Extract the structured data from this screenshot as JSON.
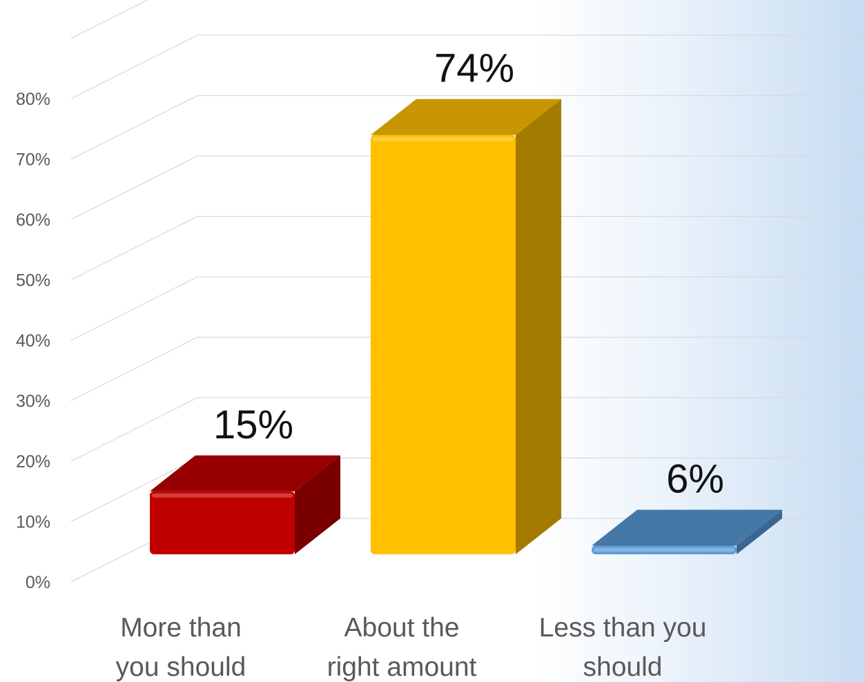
{
  "chart_data": {
    "type": "bar",
    "title": "",
    "xlabel": "",
    "ylabel": "",
    "categories": [
      "More than you should",
      "About the right amount",
      "Less than you should"
    ],
    "category_lines": [
      [
        "More than",
        "you should"
      ],
      [
        "About the",
        "right amount"
      ],
      [
        "Less than you",
        "should"
      ]
    ],
    "values": [
      15,
      74,
      6
    ],
    "value_labels": [
      "15%",
      "74%",
      "6%"
    ],
    "ylim": [
      0,
      80
    ],
    "yticks": [
      "0%",
      "10%",
      "20%",
      "30%",
      "40%",
      "50%",
      "60%",
      "70%",
      "80%"
    ],
    "grid": true,
    "legend": "none",
    "colors": [
      {
        "front": "#c00000",
        "top": "#960000",
        "side": "#7a0000"
      },
      {
        "front": "#ffc000",
        "top": "#c79600",
        "side": "#a37b00"
      },
      {
        "front": "#5b9bd5",
        "top": "#4478a6",
        "side": "#3a6792"
      }
    ]
  }
}
